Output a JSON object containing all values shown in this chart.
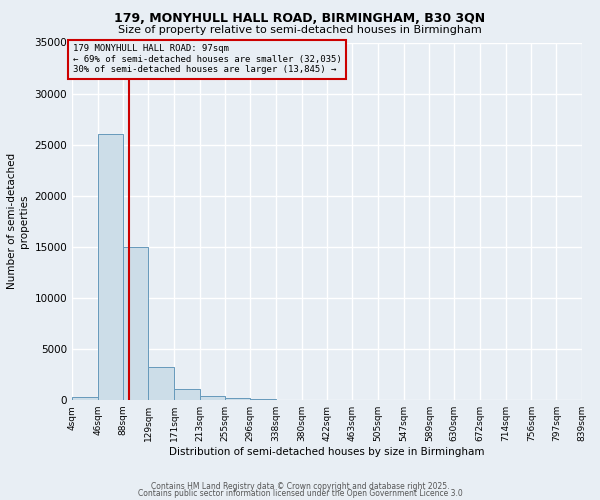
{
  "title_line1": "179, MONYHULL HALL ROAD, BIRMINGHAM, B30 3QN",
  "title_line2": "Size of property relative to semi-detached houses in Birmingham",
  "xlabel": "Distribution of semi-detached houses by size in Birmingham",
  "ylabel": "Number of semi-detached\nproperties",
  "bins": [
    "4sqm",
    "46sqm",
    "88sqm",
    "129sqm",
    "171sqm",
    "213sqm",
    "255sqm",
    "296sqm",
    "338sqm",
    "380sqm",
    "422sqm",
    "463sqm",
    "505sqm",
    "547sqm",
    "589sqm",
    "630sqm",
    "672sqm",
    "714sqm",
    "756sqm",
    "797sqm",
    "839sqm"
  ],
  "bin_edges": [
    4,
    46,
    88,
    129,
    171,
    213,
    255,
    296,
    338,
    380,
    422,
    463,
    505,
    547,
    589,
    630,
    672,
    714,
    756,
    797,
    839
  ],
  "values": [
    300,
    26000,
    15000,
    3200,
    1100,
    400,
    200,
    50,
    10,
    5,
    2,
    1,
    0,
    0,
    0,
    0,
    0,
    0,
    0,
    0
  ],
  "bar_color": "#ccdde8",
  "bar_edge_color": "#6699bb",
  "property_sqm": 97,
  "red_line_color": "#cc0000",
  "annotation_text_line1": "179 MONYHULL HALL ROAD: 97sqm",
  "annotation_text_line2": "← 69% of semi-detached houses are smaller (32,035)",
  "annotation_text_line3": "30% of semi-detached houses are larger (13,845) →",
  "annotation_box_color": "#cc0000",
  "ylim": [
    0,
    35000
  ],
  "yticks": [
    0,
    5000,
    10000,
    15000,
    20000,
    25000,
    30000,
    35000
  ],
  "background_color": "#e8eef4",
  "grid_color": "#ffffff",
  "footer_line1": "Contains HM Land Registry data © Crown copyright and database right 2025.",
  "footer_line2": "Contains public sector information licensed under the Open Government Licence 3.0"
}
